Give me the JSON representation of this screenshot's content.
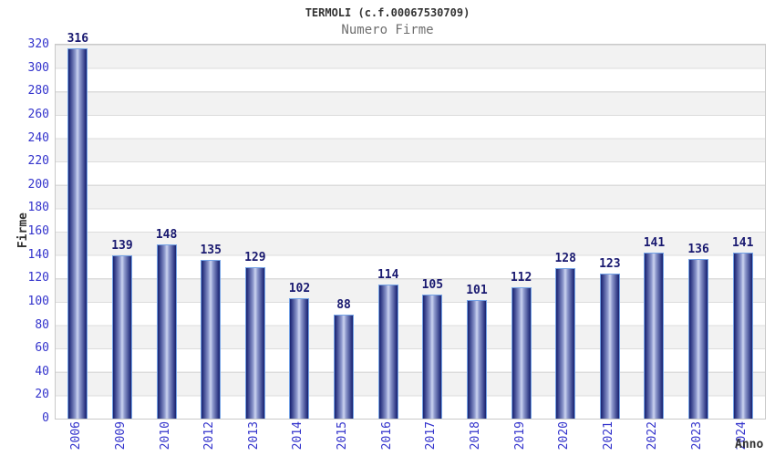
{
  "header": {
    "title": "TERMOLI (c.f.00067530709)",
    "subtitle": "Numero Firme"
  },
  "chart_data": {
    "type": "bar",
    "title": "TERMOLI (c.f.00067530709)",
    "subtitle": "Numero Firme",
    "xlabel": "Anno",
    "ylabel": "Firme",
    "categories": [
      "2006",
      "2009",
      "2010",
      "2012",
      "2013",
      "2014",
      "2015",
      "2016",
      "2017",
      "2018",
      "2019",
      "2020",
      "2021",
      "2022",
      "2023",
      "2024"
    ],
    "values": [
      316,
      139,
      148,
      135,
      129,
      102,
      88,
      114,
      105,
      101,
      112,
      128,
      123,
      141,
      136,
      141
    ],
    "ylim": [
      0,
      320
    ],
    "ytick_step": 20,
    "grid": "horizontal-bands-alternating-gray-white",
    "legend": "none",
    "colors": {
      "bar_dark": "#1a2370",
      "bar_light_center": "#ccd4f0",
      "bar_border": "#74a2e6",
      "value_label": "#191970",
      "axis_tick_text": "#3333cc",
      "band_gray": "#f2f2f2",
      "band_white": "#ffffff",
      "gridline": "#dcdcdc",
      "plot_border": "#c9c9c9",
      "title_text": "#333333",
      "subtitle_text": "#6e6e6e"
    }
  }
}
